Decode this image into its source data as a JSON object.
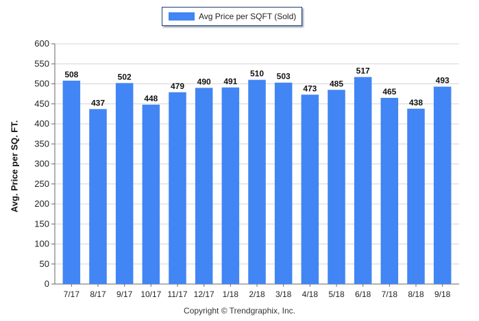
{
  "legend": {
    "label": "Avg Price per SQFT (Sold)",
    "color": "#4285f4"
  },
  "copyright": "Copyright © Trendgraphix, Inc.",
  "chart_data": {
    "type": "bar",
    "title": "",
    "xlabel": "",
    "ylabel": "Avg. Price per SQ. FT.",
    "categories": [
      "7/17",
      "8/17",
      "9/17",
      "10/17",
      "11/17",
      "12/17",
      "1/18",
      "2/18",
      "3/18",
      "4/18",
      "5/18",
      "6/18",
      "7/18",
      "8/18",
      "9/18"
    ],
    "series": [
      {
        "name": "Avg Price per SQFT (Sold)",
        "values": [
          508,
          437,
          502,
          448,
          479,
          490,
          491,
          510,
          503,
          473,
          485,
          517,
          465,
          438,
          493
        ]
      }
    ],
    "ylim": [
      0,
      600
    ],
    "yticks": [
      0,
      50,
      100,
      150,
      200,
      250,
      300,
      350,
      400,
      450,
      500,
      550,
      600
    ],
    "grid": true,
    "legend_position": "top-center",
    "bar_color": "#4285f4"
  }
}
